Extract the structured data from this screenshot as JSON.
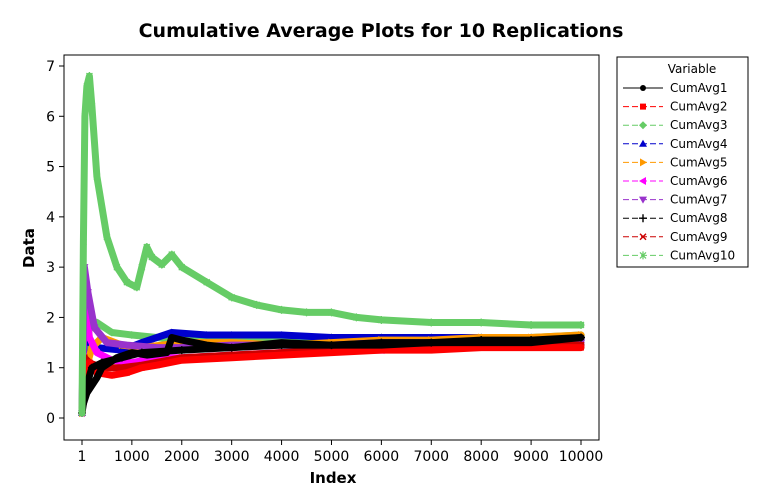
{
  "chart_data": {
    "type": "line",
    "title": "Cumulative Average Plots for 10 Replications",
    "xlabel": "Index",
    "ylabel": "Data",
    "xlim": [
      1,
      10000
    ],
    "ylim": [
      0,
      7
    ],
    "x_ticks": [
      1,
      1000,
      2000,
      3000,
      4000,
      5000,
      6000,
      7000,
      8000,
      9000,
      10000
    ],
    "x_tick_labels": [
      "1",
      "1000",
      "2000",
      "3000",
      "4000",
      "5000",
      "6000",
      "7000",
      "8000",
      "9000",
      "10000"
    ],
    "y_ticks": [
      0,
      1,
      2,
      3,
      4,
      5,
      6,
      7
    ],
    "y_tick_labels": [
      "0",
      "1",
      "2",
      "3",
      "4",
      "5",
      "6",
      "7"
    ],
    "grid": false,
    "legend": {
      "title": "Variable",
      "placement": "right"
    },
    "series": [
      {
        "name": "CumAvg1",
        "color": "#000000",
        "marker": "circle",
        "dash": "solid",
        "x": [
          1,
          100,
          300,
          400,
          700,
          1000,
          1300,
          1700,
          1800,
          2000,
          2500,
          3000,
          4000,
          5000,
          6000,
          7000,
          8000,
          9000,
          10000
        ],
        "y": [
          0.2,
          0.5,
          0.8,
          1.0,
          1.2,
          1.3,
          1.25,
          1.3,
          1.6,
          1.55,
          1.45,
          1.4,
          1.5,
          1.45,
          1.45,
          1.5,
          1.5,
          1.5,
          1.6
        ]
      },
      {
        "name": "CumAvg2",
        "color": "#ff0000",
        "marker": "square",
        "dash": "dash",
        "x": [
          1,
          50,
          150,
          300,
          600,
          900,
          1200,
          1500,
          2000,
          3000,
          4000,
          5000,
          6000,
          7000,
          8000,
          9000,
          10000
        ],
        "y": [
          0.1,
          1.0,
          1.1,
          0.9,
          0.85,
          0.9,
          1.0,
          1.05,
          1.15,
          1.2,
          1.25,
          1.3,
          1.35,
          1.35,
          1.4,
          1.4,
          1.4
        ]
      },
      {
        "name": "CumAvg3",
        "color": "#66cc66",
        "marker": "diamond",
        "dash": "dash",
        "x": [
          1,
          60,
          150,
          300,
          600,
          1000,
          1500,
          2000,
          3000,
          4000,
          5000,
          6000,
          7000,
          8000,
          9000,
          10000
        ],
        "y": [
          0.1,
          1.0,
          1.8,
          1.9,
          1.7,
          1.65,
          1.6,
          1.55,
          1.55,
          1.55,
          1.6,
          1.6,
          1.6,
          1.6,
          1.6,
          1.65
        ]
      },
      {
        "name": "CumAvg4",
        "color": "#0000cc",
        "marker": "triangle-up",
        "dash": "dash",
        "x": [
          1,
          50,
          150,
          300,
          800,
          1200,
          1800,
          2500,
          3000,
          4000,
          5000,
          6000,
          7000,
          8000,
          9000,
          10000
        ],
        "y": [
          0.1,
          1.8,
          1.5,
          1.4,
          1.35,
          1.5,
          1.7,
          1.65,
          1.65,
          1.65,
          1.6,
          1.6,
          1.6,
          1.6,
          1.6,
          1.6
        ]
      },
      {
        "name": "CumAvg5",
        "color": "#ff9900",
        "marker": "triangle-right",
        "dash": "dash",
        "x": [
          1,
          60,
          200,
          400,
          800,
          1200,
          2000,
          3000,
          4000,
          5000,
          6000,
          7000,
          8000,
          9000,
          10000
        ],
        "y": [
          0.1,
          0.9,
          1.4,
          1.6,
          1.45,
          1.4,
          1.5,
          1.5,
          1.45,
          1.5,
          1.55,
          1.55,
          1.6,
          1.6,
          1.65
        ]
      },
      {
        "name": "CumAvg6",
        "color": "#ff00ff",
        "marker": "triangle-left",
        "dash": "dash",
        "x": [
          1,
          50,
          150,
          300,
          600,
          1000,
          1500,
          2000,
          3000,
          4000,
          5000,
          6000,
          7000,
          8000,
          9000,
          10000
        ],
        "y": [
          0.1,
          2.5,
          1.6,
          1.3,
          1.15,
          1.1,
          1.2,
          1.2,
          1.25,
          1.3,
          1.35,
          1.35,
          1.4,
          1.45,
          1.45,
          1.45
        ]
      },
      {
        "name": "CumAvg7",
        "color": "#9933cc",
        "marker": "triangle-down",
        "dash": "dash",
        "x": [
          1,
          50,
          120,
          250,
          500,
          900,
          1500,
          2000,
          3000,
          4000,
          5000,
          6000,
          7000,
          8000,
          9000,
          10000
        ],
        "y": [
          0.1,
          3.0,
          2.5,
          1.8,
          1.5,
          1.45,
          1.4,
          1.4,
          1.45,
          1.45,
          1.45,
          1.5,
          1.5,
          1.5,
          1.5,
          1.5
        ]
      },
      {
        "name": "CumAvg8",
        "color": "#000000",
        "marker": "plus",
        "dash": "dash",
        "x": [
          1,
          80,
          200,
          400,
          800,
          1200,
          2000,
          3000,
          4000,
          5000,
          6000,
          7000,
          8000,
          9000,
          10000
        ],
        "y": [
          0.1,
          0.6,
          1.0,
          1.1,
          1.2,
          1.3,
          1.35,
          1.4,
          1.45,
          1.45,
          1.5,
          1.5,
          1.55,
          1.55,
          1.6
        ]
      },
      {
        "name": "CumAvg9",
        "color": "#cc0000",
        "marker": "x",
        "dash": "dash",
        "x": [
          1,
          50,
          150,
          400,
          800,
          1200,
          2000,
          3000,
          4000,
          5000,
          6000,
          7000,
          8000,
          9000,
          10000
        ],
        "y": [
          0.1,
          1.2,
          1.1,
          1.0,
          1.0,
          1.05,
          1.2,
          1.25,
          1.3,
          1.35,
          1.4,
          1.4,
          1.45,
          1.45,
          1.45
        ]
      },
      {
        "name": "CumAvg10",
        "color": "#66cc66",
        "marker": "asterisk",
        "dash": "dash",
        "x": [
          1,
          30,
          60,
          100,
          150,
          200,
          300,
          500,
          700,
          900,
          1100,
          1200,
          1300,
          1400,
          1600,
          1800,
          2000,
          2500,
          3000,
          3500,
          4000,
          4500,
          5000,
          5500,
          6000,
          7000,
          8000,
          9000,
          10000
        ],
        "y": [
          0.1,
          3.5,
          6.0,
          6.6,
          6.8,
          6.2,
          4.8,
          3.6,
          3.0,
          2.7,
          2.6,
          3.0,
          3.4,
          3.2,
          3.05,
          3.25,
          3.0,
          2.7,
          2.4,
          2.25,
          2.15,
          2.1,
          2.1,
          2.0,
          1.95,
          1.9,
          1.9,
          1.85,
          1.85
        ]
      }
    ]
  }
}
